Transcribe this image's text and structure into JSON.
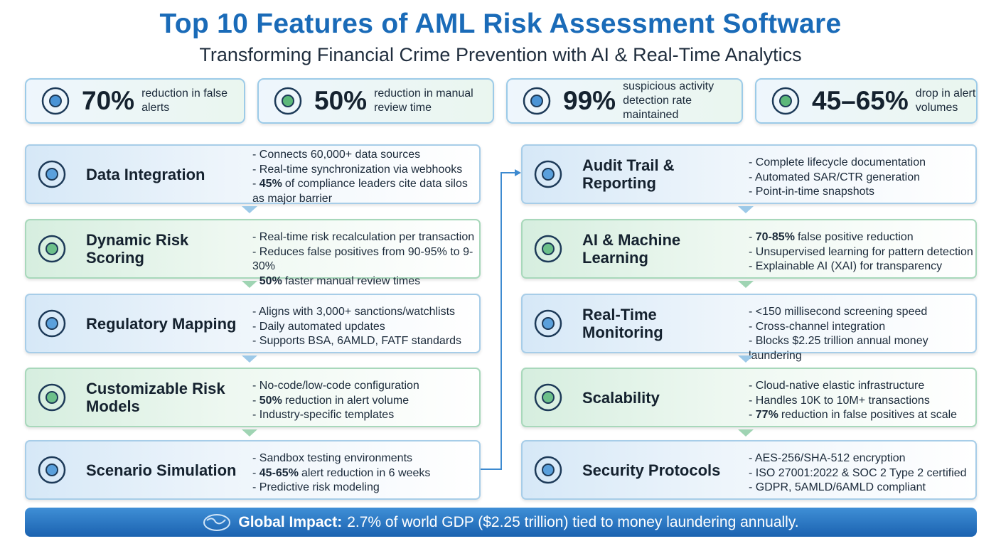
{
  "header": {
    "title": "Top 10 Features of AML Risk Assessment Software",
    "subtitle": "Transforming Financial Crime Prevention with AI & Real-Time Analytics"
  },
  "stats": [
    {
      "value": "70%",
      "label": "reduction in false alerts"
    },
    {
      "value": "50%",
      "label": "reduction in manual review time"
    },
    {
      "value": "99%",
      "label": "suspicious activity detection rate maintained"
    },
    {
      "value": "45–65%",
      "label": "drop in alert volumes"
    }
  ],
  "features": [
    {
      "title": "Data Integration",
      "bullets": [
        "Connects 60,000+ data sources",
        "Real-time synchronization via webhooks",
        {
          "bold": "45%",
          "text": "of compliance leaders cite data silos as major barrier"
        }
      ]
    },
    {
      "title": "Dynamic Risk Scoring",
      "bullets": [
        "Real-time risk recalculation per transaction",
        "Reduces false positives from 90-95% to 9-30%",
        {
          "bold": "50%",
          "text": "faster manual review times"
        }
      ]
    },
    {
      "title": "Regulatory Mapping",
      "bullets": [
        "Aligns with 3,000+ sanctions/watchlists",
        "Daily automated updates",
        "Supports BSA, 6AMLD, FATF standards"
      ]
    },
    {
      "title": "Customizable Risk Models",
      "bullets": [
        "No-code/low-code configuration",
        {
          "bold": "50%",
          "text": "reduction in alert volume"
        },
        "Industry-specific templates"
      ]
    },
    {
      "title": "Scenario Simulation",
      "bullets": [
        "Sandbox testing environments",
        {
          "bold": "45-65%",
          "text": "alert reduction in 6 weeks"
        },
        "Predictive risk modeling"
      ]
    },
    {
      "title": "Audit Trail & Reporting",
      "bullets": [
        "Complete lifecycle documentation",
        "Automated SAR/CTR generation",
        "Point-in-time snapshots"
      ]
    },
    {
      "title": "AI & Machine Learning",
      "bullets": [
        {
          "bold": "70-85%",
          "text": "false positive reduction"
        },
        "Unsupervised learning for pattern detection",
        "Explainable AI (XAI) for transparency"
      ]
    },
    {
      "title": "Real-Time Monitoring",
      "bullets": [
        "<150 millisecond screening speed",
        "Cross-channel integration",
        "Blocks $2.25 trillion annual money laundering"
      ]
    },
    {
      "title": "Scalability",
      "bullets": [
        "Cloud-native elastic infrastructure",
        "Handles 10K to 10M+ transactions",
        {
          "bold": "77%",
          "text": "reduction in false positives at scale"
        }
      ]
    },
    {
      "title": "Security Protocols",
      "bullets": [
        "AES-256/SHA-512 encryption",
        "ISO 27001:2022 & SOC 2 Type 2 certified",
        "GDPR, 5AMLD/6AMLD compliant"
      ]
    }
  ],
  "footer": {
    "label": "Global Impact:",
    "text": "2.7% of world GDP ($2.25 trillion) tied to money laundering annually."
  }
}
